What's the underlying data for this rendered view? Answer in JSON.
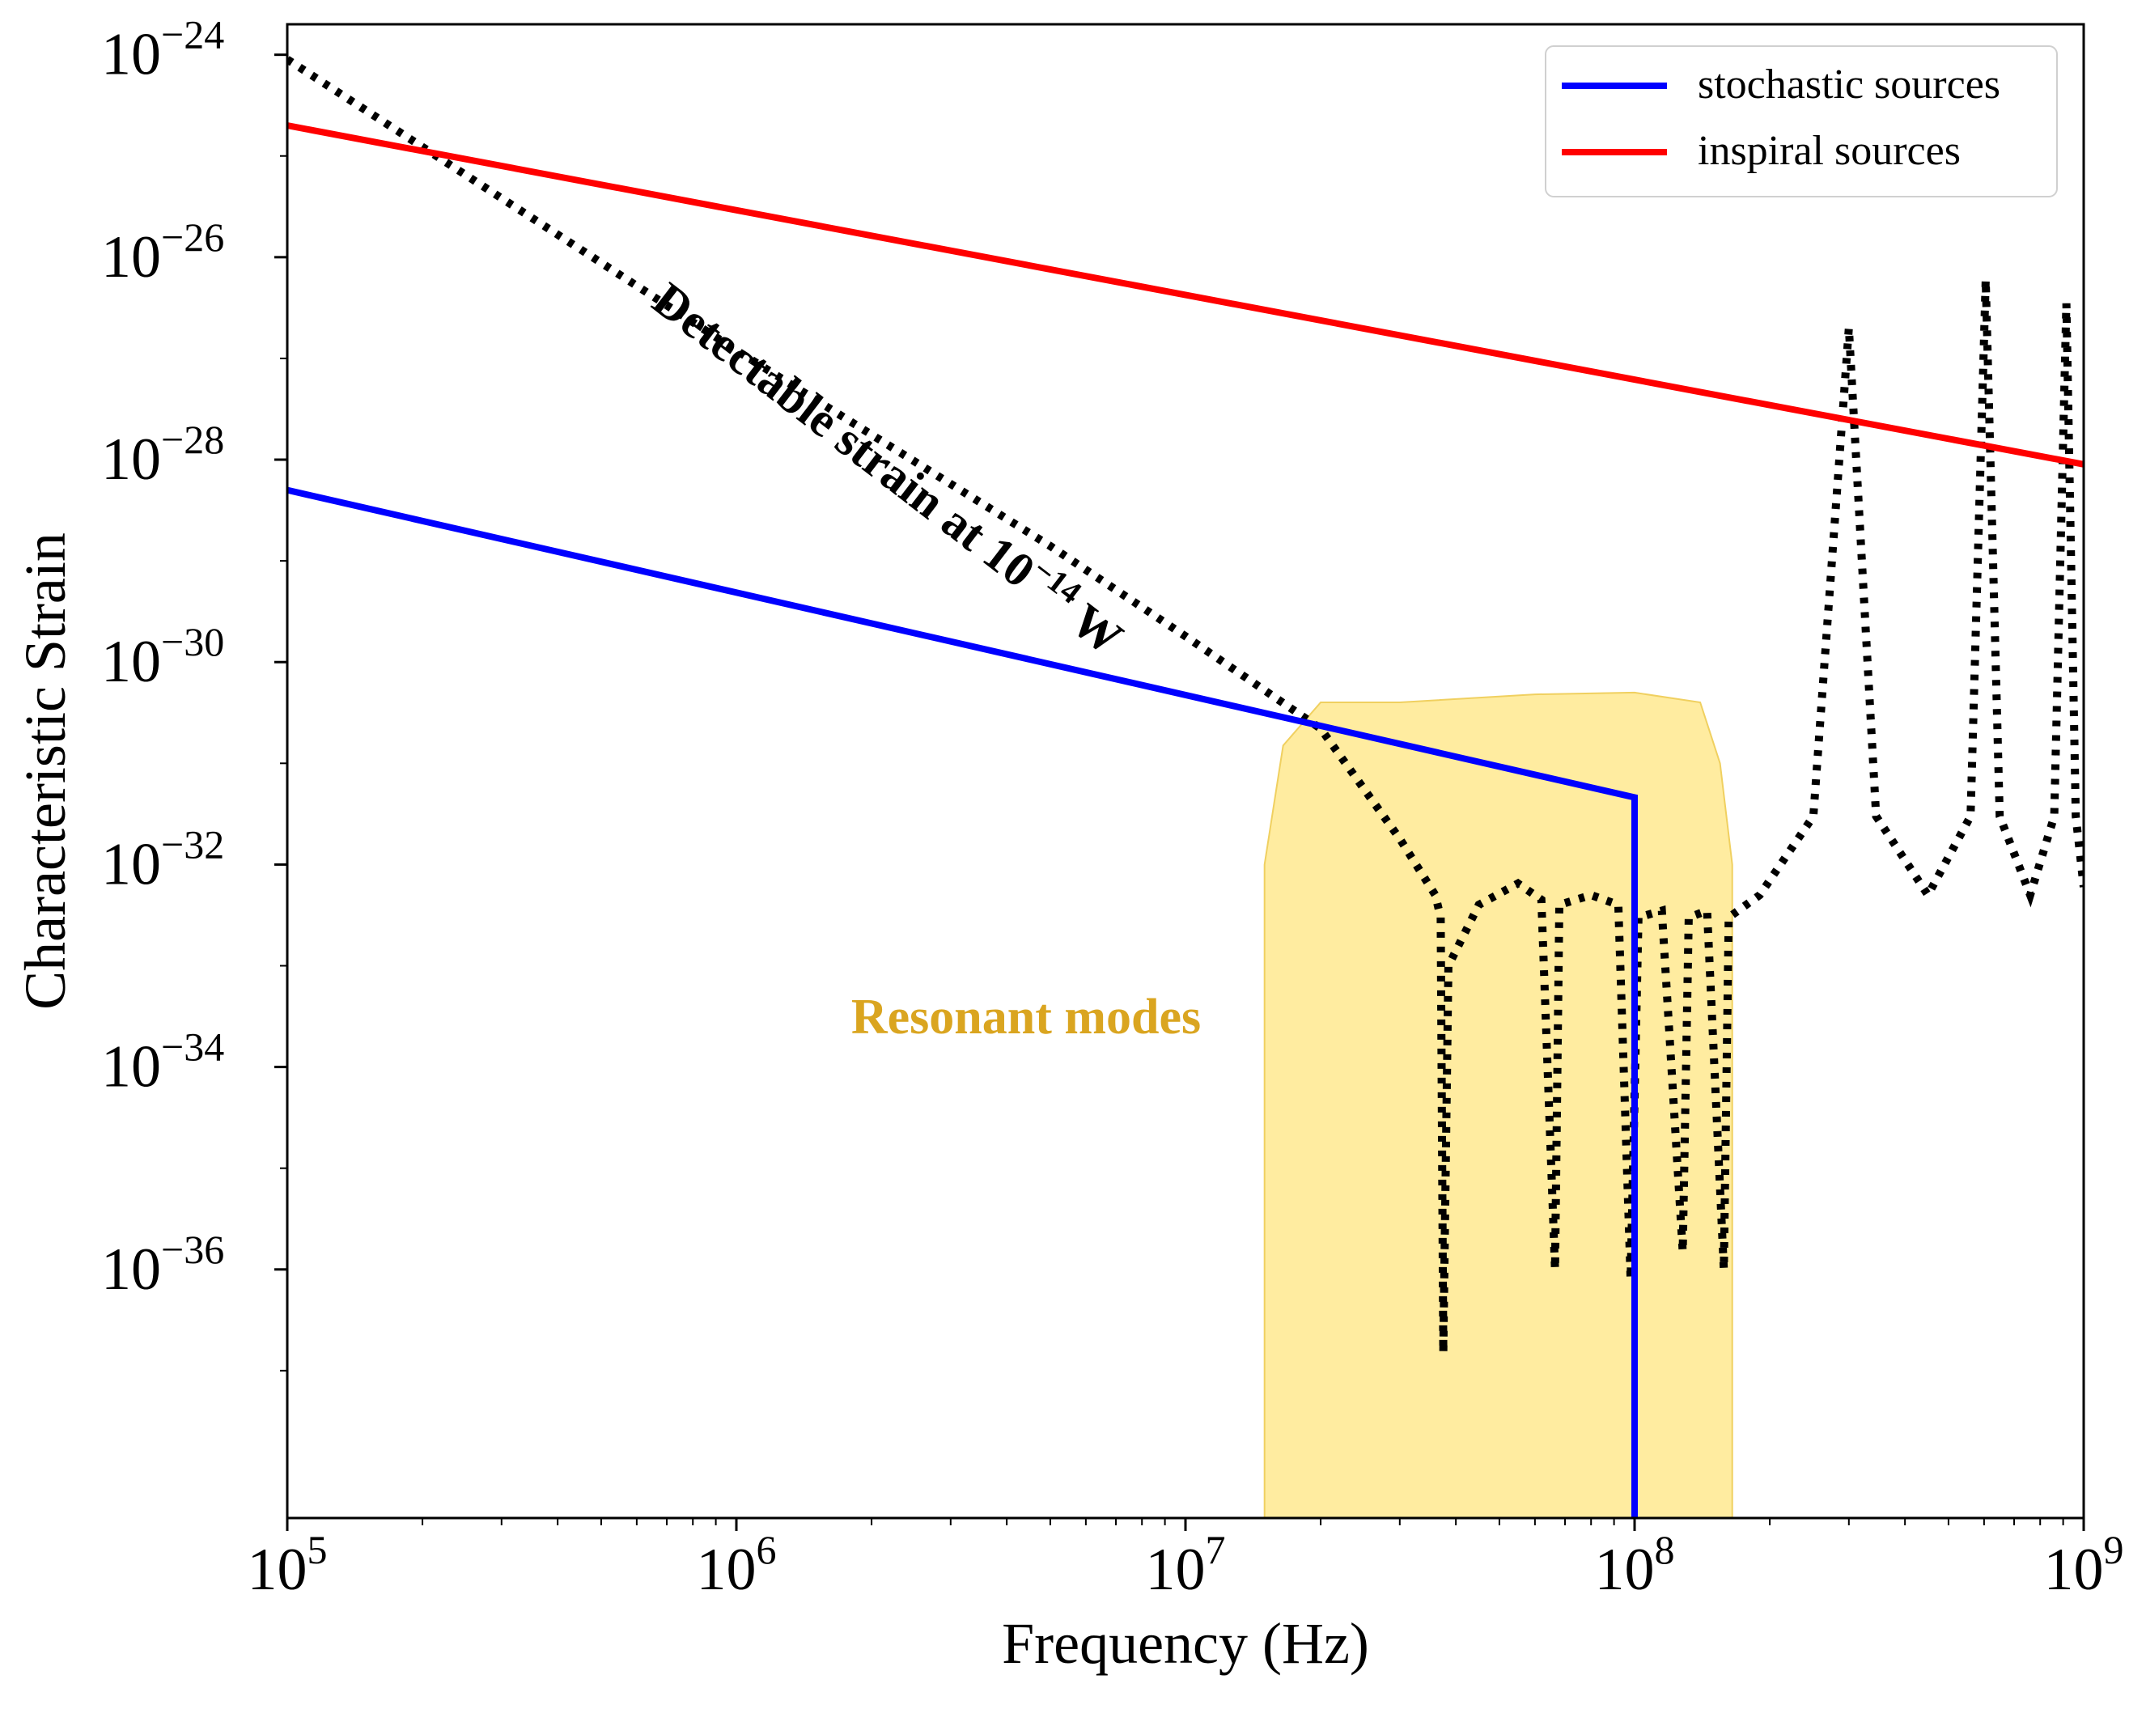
{
  "chart_data": {
    "type": "line",
    "xlabel": "Frequency (Hz)",
    "ylabel": "Characteristic Strain",
    "xscale": "log",
    "yscale": "log",
    "xlim": [
      100000,
      1000000000
    ],
    "ylim": [
      3.5e-39,
      2e-24
    ],
    "x_tick_exponents": [
      5,
      6,
      7,
      8,
      9
    ],
    "y_tick_exponents": [
      -24,
      -26,
      -28,
      -30,
      -32,
      -34,
      -36
    ],
    "x_tick_labels": [
      {
        "base": "10",
        "exp": "5"
      },
      {
        "base": "10",
        "exp": "6"
      },
      {
        "base": "10",
        "exp": "7"
      },
      {
        "base": "10",
        "exp": "8"
      },
      {
        "base": "10",
        "exp": "9"
      }
    ],
    "y_tick_labels": [
      {
        "base": "10",
        "exp": "−24"
      },
      {
        "base": "10",
        "exp": "−26"
      },
      {
        "base": "10",
        "exp": "−28"
      },
      {
        "base": "10",
        "exp": "−30"
      },
      {
        "base": "10",
        "exp": "−32"
      },
      {
        "base": "10",
        "exp": "−34"
      },
      {
        "base": "10",
        "exp": "−36"
      }
    ],
    "grid": false,
    "legend_position": "top-right",
    "legend": [
      {
        "label": "stochastic sources",
        "color": "#0000ff"
      },
      {
        "label": "inspiral sources",
        "color": "#ff0000"
      }
    ],
    "series": [
      {
        "name": "stochastic sources",
        "color": "#0000ff",
        "style": "solid",
        "points": [
          [
            100000,
            5e-29
          ],
          [
            100000000,
            4.6e-32
          ],
          [
            100000000,
            1e-39
          ]
        ]
      },
      {
        "name": "inspiral sources",
        "color": "#ff0000",
        "style": "solid",
        "points": [
          [
            100000,
            2e-25
          ],
          [
            1000000000,
            9e-29
          ]
        ]
      }
    ],
    "detectable_strain": {
      "color": "#000000",
      "style": "dotted",
      "label_main": "Detectable strain at 10",
      "label_exp": "−14",
      "label_unit": " W",
      "points": [
        [
          100000,
          9e-25
        ],
        [
          1000000,
          1.2e-27
        ],
        [
          5000000,
          1.4e-29
        ],
        [
          10000000,
          1.8e-30
        ],
        [
          20000000,
          2.2e-31
        ],
        [
          30000000,
          1.8e-32
        ],
        [
          36000000,
          5e-33
        ],
        [
          37000000,
          3e-33
        ],
        [
          37500000,
          1.5e-37
        ],
        [
          38500000,
          1e-33
        ],
        [
          45000000,
          4e-33
        ],
        [
          55000000,
          6.5e-33
        ],
        [
          62000000,
          4.5e-33
        ],
        [
          66500000,
          1e-36
        ],
        [
          68000000,
          4e-33
        ],
        [
          80000000,
          5e-33
        ],
        [
          92000000,
          4e-33
        ],
        [
          98000000,
          8e-37
        ],
        [
          102000000,
          3e-33
        ],
        [
          115000000,
          3.5e-33
        ],
        [
          128000000,
          1.5e-36
        ],
        [
          132000000,
          3e-33
        ],
        [
          145000000,
          3.5e-33
        ],
        [
          158000000,
          1e-36
        ],
        [
          162000000,
          3e-33
        ],
        [
          190000000,
          5e-33
        ],
        [
          250000000,
          3e-32
        ],
        [
          300000000,
          2e-27
        ],
        [
          345000000,
          3e-32
        ],
        [
          450000000,
          5e-33
        ],
        [
          560000000,
          3e-32
        ],
        [
          605000000,
          6e-27
        ],
        [
          650000000,
          3e-32
        ],
        [
          760000000,
          5e-33
        ],
        [
          860000000,
          3e-32
        ],
        [
          915000000,
          3.5e-27
        ],
        [
          960000000,
          3e-32
        ],
        [
          1000000000,
          6e-33
        ]
      ]
    },
    "resonant_region": {
      "label": "Resonant modes",
      "color": "#ffe680",
      "x_start": 15000000,
      "x_end": 165000000,
      "top_points": [
        [
          15000000,
          1e-39
        ],
        [
          15000000,
          1e-32
        ],
        [
          16500000,
          1.5e-31
        ],
        [
          20000000,
          4e-31
        ],
        [
          30000000,
          4e-31
        ],
        [
          60000000,
          4.8e-31
        ],
        [
          100000000,
          5e-31
        ],
        [
          140000000,
          4e-31
        ],
        [
          155000000,
          1e-31
        ],
        [
          165000000,
          1e-32
        ],
        [
          165000000,
          1e-39
        ]
      ]
    }
  }
}
